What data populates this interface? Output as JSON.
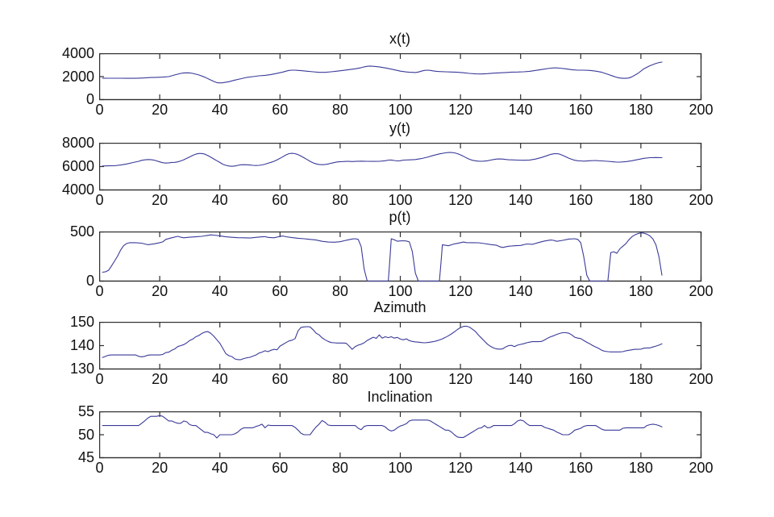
{
  "figure": {
    "background": "#ffffff",
    "frame_color": "#2e2e2e",
    "line_color": "#3a3a99",
    "label_color": "#111111"
  },
  "chart_data": [
    {
      "type": "line",
      "title": "x(t)",
      "xlim": [
        0,
        200
      ],
      "xticks": [
        0,
        20,
        40,
        60,
        80,
        100,
        120,
        140,
        160,
        180,
        200
      ],
      "ylim": [
        0,
        4000
      ],
      "yticks": [
        0,
        2000,
        4000
      ],
      "grid": false,
      "legend": null,
      "x": [
        1,
        3,
        5,
        7,
        9,
        11,
        13,
        15,
        17,
        19,
        21,
        23,
        25,
        27,
        28,
        29,
        30,
        31,
        33,
        35,
        37,
        38,
        39,
        40,
        41,
        43,
        45,
        47,
        49,
        51,
        53,
        55,
        57,
        59,
        61,
        62,
        63,
        64,
        65,
        66,
        67,
        69,
        71,
        73,
        75,
        77,
        79,
        81,
        83,
        85,
        87,
        88,
        89,
        90,
        91,
        93,
        95,
        97,
        99,
        100,
        101,
        102,
        103,
        104,
        105,
        106,
        107,
        108,
        109,
        110,
        111,
        112,
        113,
        115,
        117,
        119,
        121,
        123,
        125,
        127,
        129,
        131,
        133,
        135,
        137,
        139,
        141,
        143,
        145,
        147,
        149,
        150,
        151,
        152,
        153,
        155,
        157,
        159,
        161,
        163,
        165,
        167,
        169,
        171,
        172,
        173,
        174,
        175,
        176,
        177,
        179,
        181,
        183,
        185,
        186,
        187
      ],
      "y": [
        1870,
        1860,
        1860,
        1860,
        1850,
        1850,
        1865,
        1890,
        1920,
        1940,
        1960,
        2000,
        2150,
        2280,
        2320,
        2330,
        2320,
        2280,
        2150,
        1950,
        1700,
        1580,
        1480,
        1450,
        1470,
        1560,
        1700,
        1820,
        1940,
        2000,
        2070,
        2110,
        2180,
        2290,
        2400,
        2480,
        2540,
        2560,
        2560,
        2540,
        2520,
        2470,
        2420,
        2370,
        2370,
        2420,
        2480,
        2540,
        2610,
        2680,
        2780,
        2850,
        2900,
        2920,
        2900,
        2850,
        2760,
        2650,
        2540,
        2480,
        2440,
        2410,
        2380,
        2370,
        2360,
        2400,
        2480,
        2540,
        2560,
        2540,
        2500,
        2460,
        2440,
        2420,
        2400,
        2380,
        2340,
        2280,
        2240,
        2230,
        2260,
        2300,
        2330,
        2360,
        2390,
        2400,
        2420,
        2460,
        2540,
        2620,
        2700,
        2740,
        2760,
        2760,
        2740,
        2680,
        2600,
        2560,
        2560,
        2540,
        2480,
        2380,
        2200,
        2020,
        1940,
        1880,
        1850,
        1850,
        1880,
        1980,
        2280,
        2680,
        2950,
        3150,
        3220,
        3260
      ]
    },
    {
      "type": "line",
      "title": "y(t)",
      "xlim": [
        0,
        200
      ],
      "xticks": [
        0,
        20,
        40,
        60,
        80,
        100,
        120,
        140,
        160,
        180,
        200
      ],
      "ylim": [
        4000,
        8000
      ],
      "yticks": [
        4000,
        6000,
        8000
      ],
      "grid": false,
      "legend": null,
      "x": [
        1,
        3,
        5,
        7,
        9,
        11,
        13,
        14,
        15,
        16,
        17,
        18,
        19,
        20,
        21,
        22,
        23,
        24,
        25,
        26,
        27,
        28,
        29,
        30,
        31,
        32,
        33,
        34,
        35,
        36,
        37,
        38,
        39,
        40,
        41,
        42,
        43,
        44,
        45,
        46,
        47,
        48,
        49,
        50,
        51,
        52,
        53,
        54,
        55,
        56,
        57,
        58,
        59,
        60,
        61,
        62,
        63,
        64,
        65,
        66,
        67,
        68,
        69,
        70,
        71,
        72,
        73,
        74,
        75,
        76,
        77,
        78,
        79,
        80,
        81,
        82,
        83,
        84,
        85,
        87,
        89,
        91,
        93,
        95,
        96,
        97,
        98,
        99,
        100,
        101,
        103,
        105,
        107,
        109,
        111,
        113,
        115,
        116,
        117,
        118,
        119,
        120,
        121,
        122,
        123,
        124,
        125,
        126,
        127,
        128,
        129,
        130,
        131,
        132,
        133,
        134,
        135,
        136,
        137,
        139,
        141,
        143,
        145,
        147,
        149,
        150,
        151,
        152,
        153,
        154,
        155,
        156,
        157,
        158,
        159,
        160,
        161,
        163,
        165,
        166,
        167,
        169,
        171,
        172,
        173,
        175,
        177,
        179,
        181,
        183,
        185,
        187
      ],
      "y": [
        6050,
        6060,
        6070,
        6130,
        6220,
        6340,
        6450,
        6530,
        6570,
        6600,
        6590,
        6560,
        6480,
        6400,
        6330,
        6300,
        6320,
        6350,
        6360,
        6400,
        6480,
        6580,
        6700,
        6830,
        6960,
        7060,
        7120,
        7120,
        7060,
        6940,
        6800,
        6650,
        6500,
        6350,
        6200,
        6100,
        6050,
        6020,
        6050,
        6100,
        6150,
        6160,
        6150,
        6130,
        6100,
        6090,
        6100,
        6140,
        6200,
        6280,
        6360,
        6450,
        6570,
        6700,
        6850,
        7000,
        7100,
        7130,
        7100,
        7020,
        6900,
        6750,
        6600,
        6450,
        6320,
        6230,
        6180,
        6160,
        6180,
        6220,
        6280,
        6340,
        6390,
        6420,
        6430,
        6440,
        6440,
        6430,
        6440,
        6460,
        6450,
        6440,
        6450,
        6500,
        6550,
        6560,
        6520,
        6480,
        6500,
        6550,
        6570,
        6600,
        6680,
        6800,
        6950,
        7080,
        7170,
        7200,
        7200,
        7170,
        7100,
        7000,
        6880,
        6740,
        6620,
        6540,
        6490,
        6460,
        6450,
        6470,
        6500,
        6550,
        6600,
        6640,
        6650,
        6640,
        6610,
        6580,
        6570,
        6550,
        6540,
        6560,
        6640,
        6780,
        6950,
        7040,
        7090,
        7100,
        7060,
        6960,
        6840,
        6720,
        6620,
        6540,
        6500,
        6480,
        6460,
        6500,
        6520,
        6500,
        6480,
        6450,
        6400,
        6380,
        6380,
        6420,
        6500,
        6600,
        6700,
        6760,
        6770,
        6760
      ]
    },
    {
      "type": "line",
      "title": "p(t)",
      "xlim": [
        0,
        200
      ],
      "xticks": [
        0,
        20,
        40,
        60,
        80,
        100,
        120,
        140,
        160,
        180,
        200
      ],
      "ylim": [
        0,
        500
      ],
      "yticks": [
        0,
        500
      ],
      "grid": false,
      "legend": null,
      "x": [
        1,
        2,
        3,
        4,
        5,
        6,
        7,
        8,
        9,
        10,
        12,
        14,
        16,
        18,
        20,
        21,
        22,
        24,
        26,
        27,
        28,
        30,
        32,
        34,
        36,
        37,
        38,
        40,
        42,
        44,
        46,
        48,
        50,
        52,
        54,
        55,
        56,
        58,
        60,
        61,
        62,
        64,
        66,
        68,
        70,
        72,
        74,
        76,
        78,
        80,
        82,
        84,
        85,
        86,
        87,
        88,
        89,
        92,
        96,
        96.5,
        97,
        98,
        99,
        100,
        101,
        102,
        103,
        104,
        105,
        106,
        109,
        113,
        113.5,
        114,
        115,
        116,
        117,
        118,
        120,
        121,
        122,
        124,
        126,
        128,
        130,
        132,
        133,
        134,
        136,
        138,
        140,
        142,
        144,
        146,
        148,
        150,
        151,
        152,
        154,
        156,
        158,
        159,
        160,
        161,
        162,
        163,
        166,
        169,
        170,
        171,
        172,
        173,
        174,
        175,
        176,
        177,
        178,
        179,
        180,
        181,
        182,
        183,
        184,
        185,
        186,
        187
      ],
      "y": [
        90,
        95,
        110,
        155,
        205,
        255,
        315,
        360,
        382,
        390,
        390,
        385,
        370,
        378,
        390,
        398,
        424,
        440,
        455,
        446,
        440,
        446,
        450,
        455,
        465,
        470,
        467,
        460,
        450,
        445,
        441,
        440,
        438,
        444,
        450,
        452,
        444,
        440,
        454,
        458,
        451,
        442,
        435,
        430,
        424,
        417,
        404,
        397,
        395,
        400,
        415,
        428,
        430,
        424,
        350,
        120,
        0,
        0,
        0,
        200,
        430,
        420,
        405,
        408,
        410,
        407,
        398,
        300,
        80,
        0,
        0,
        0,
        180,
        370,
        364,
        359,
        369,
        378,
        390,
        397,
        391,
        390,
        389,
        381,
        371,
        364,
        350,
        342,
        354,
        359,
        362,
        377,
        374,
        392,
        407,
        417,
        414,
        404,
        414,
        427,
        430,
        424,
        390,
        250,
        60,
        0,
        0,
        0,
        290,
        298,
        283,
        328,
        354,
        380,
        420,
        450,
        470,
        483,
        490,
        487,
        477,
        459,
        428,
        368,
        248,
        60
      ]
    },
    {
      "type": "line",
      "title": "Azimuth",
      "xlim": [
        0,
        200
      ],
      "xticks": [
        0,
        20,
        40,
        60,
        80,
        100,
        120,
        140,
        160,
        180,
        200
      ],
      "ylim": [
        130,
        150
      ],
      "yticks": [
        130,
        140,
        150
      ],
      "grid": false,
      "legend": null,
      "x_range": [
        1,
        187
      ],
      "y": [
        134.9,
        135.4,
        135.9,
        136,
        136,
        136,
        136,
        136,
        136,
        136,
        136,
        136,
        135.4,
        135.2,
        135.4,
        135.9,
        136,
        136,
        136,
        136,
        136.2,
        137,
        137.2,
        138,
        138.6,
        139.6,
        140,
        140.4,
        141.2,
        142.2,
        142.8,
        143.8,
        144.3,
        145.2,
        145.8,
        146,
        145.2,
        144,
        142.5,
        141,
        138.8,
        136.5,
        135.7,
        135.3,
        134.3,
        134,
        134,
        134.5,
        134.8,
        135,
        135.5,
        136,
        136.8,
        137.2,
        137.8,
        137.4,
        138,
        138.4,
        138.2,
        139.8,
        140.5,
        141.3,
        142,
        142.3,
        143,
        146.3,
        147.8,
        148,
        148.1,
        148,
        146.8,
        145.3,
        144.6,
        143.3,
        142.5,
        141.8,
        141.3,
        141.2,
        141.1,
        141.1,
        141.1,
        141,
        139.8,
        138.4,
        139.6,
        140.2,
        140.6,
        141.2,
        142.2,
        142.9,
        143.6,
        143.1,
        144.6,
        143.2,
        143.8,
        143.4,
        143.8,
        143.2,
        143.5,
        142.8,
        142.5,
        142.9,
        142.1,
        141.8,
        141.6,
        141.5,
        141.3,
        141.2,
        141.3,
        141.5,
        141.7,
        142,
        142.4,
        142.9,
        143.5,
        144.2,
        145,
        145.9,
        146.9,
        147.7,
        148.2,
        148.3,
        147.9,
        147,
        146,
        144.5,
        143.2,
        141.9,
        140.6,
        139.7,
        139,
        138.6,
        138.5,
        138.6,
        139.4,
        140,
        140.1,
        139.6,
        140.2,
        140.5,
        140.8,
        141.2,
        141.5,
        141.7,
        141.7,
        141.7,
        141.8,
        142.4,
        143.2,
        143.8,
        144.2,
        144.8,
        145.2,
        145.5,
        145.5,
        145.3,
        144.6,
        143.6,
        143.2,
        143,
        142.2,
        141.4,
        140.8,
        140,
        139.4,
        138.8,
        138,
        137.6,
        137.4,
        137.3,
        137.3,
        137.3,
        137.3,
        137.4,
        137.8,
        138,
        138.2,
        138.4,
        138.4,
        138.5,
        138.9,
        139,
        139,
        139.4,
        139.8,
        140.2,
        140.8
      ]
    },
    {
      "type": "line",
      "title": "Inclination",
      "xlim": [
        0,
        200
      ],
      "xticks": [
        0,
        20,
        40,
        60,
        80,
        100,
        120,
        140,
        160,
        180,
        200
      ],
      "ylim": [
        45,
        55
      ],
      "yticks": [
        45,
        50,
        55
      ],
      "grid": false,
      "legend": null,
      "x_range": [
        1,
        187
      ],
      "y": [
        52,
        52,
        52,
        52,
        52,
        52,
        52,
        52,
        52,
        52,
        52,
        52,
        52,
        52.5,
        53,
        53.6,
        54,
        54,
        54,
        54.2,
        54,
        53.5,
        53,
        53,
        52.7,
        52.5,
        52.5,
        53,
        52.8,
        52.2,
        52,
        52,
        51.5,
        51,
        50.5,
        50.5,
        50.2,
        50,
        49.3,
        50,
        50,
        50,
        50,
        50,
        50.2,
        50.6,
        51.2,
        51.5,
        51.5,
        51.5,
        51.5,
        51.8,
        52,
        52.3,
        51.5,
        52.1,
        52,
        52,
        52,
        52,
        52,
        52,
        52,
        52,
        51.6,
        51,
        50.3,
        50,
        50,
        50,
        50.9,
        51.7,
        52.3,
        53.1,
        52.7,
        52.1,
        52,
        52,
        52,
        52,
        52,
        52,
        52,
        52,
        52,
        51.4,
        51.1,
        51.8,
        52,
        52,
        52,
        52,
        52,
        52,
        51.7,
        51.1,
        50.8,
        51,
        51.5,
        51.9,
        52.1,
        52.4,
        53,
        53.2,
        53.2,
        53.2,
        53.2,
        53.2,
        53.2,
        53,
        52.6,
        52.2,
        51.8,
        51.4,
        51,
        51,
        50.6,
        50,
        49.5,
        49.4,
        49.4,
        49.8,
        50.2,
        50.6,
        51,
        51.4,
        51.5,
        52,
        51.5,
        51.6,
        52,
        52,
        52,
        52,
        52,
        52,
        52,
        52.4,
        53,
        53.2,
        53,
        52.4,
        52,
        52,
        52,
        52,
        52,
        51.6,
        51.4,
        51.2,
        51,
        50.6,
        50.3,
        50,
        50,
        50,
        50.4,
        51,
        51.2,
        51.4,
        51.8,
        52,
        52,
        52,
        52,
        51.6,
        51.2,
        51,
        51,
        51,
        51,
        51,
        51,
        51.4,
        51.5,
        51.5,
        51.5,
        51.5,
        51.5,
        51.5,
        51.5,
        52,
        52.2,
        52.3,
        52.2,
        52,
        51.7
      ]
    }
  ]
}
